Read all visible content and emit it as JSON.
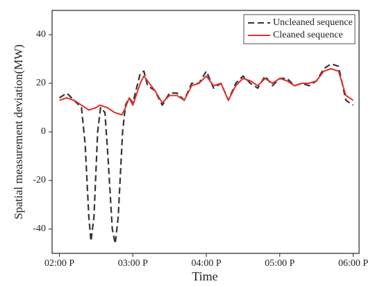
{
  "chart_data": {
    "type": "line",
    "xlabel": "Time",
    "ylabel": "Spatial measurement deviation(MW)",
    "xlim": [
      13.9,
      18.08
    ],
    "xticks": [
      {
        "value": 14,
        "label": "02:00 P"
      },
      {
        "value": 15,
        "label": "03:00 P"
      },
      {
        "value": 16,
        "label": "04:00 P"
      },
      {
        "value": 17,
        "label": "05:00 P"
      },
      {
        "value": 18,
        "label": "06:00 P"
      }
    ],
    "ylim": [
      -50,
      50
    ],
    "yticks": [
      -40,
      -20,
      0,
      20,
      40
    ],
    "legend": "upper right",
    "series": [
      {
        "name": "Uncleaned sequence",
        "color": "#333333",
        "dashed": true,
        "x": [
          14.0,
          14.1,
          14.2,
          14.3,
          14.35,
          14.4,
          14.43,
          14.47,
          14.52,
          14.56,
          14.62,
          14.66,
          14.72,
          14.76,
          14.8,
          14.86,
          14.9,
          14.95,
          15.0,
          15.1,
          15.15,
          15.2,
          15.3,
          15.4,
          15.5,
          15.6,
          15.7,
          15.8,
          15.9,
          16.0,
          16.1,
          16.2,
          16.3,
          16.4,
          16.5,
          16.6,
          16.7,
          16.8,
          16.9,
          17.0,
          17.1,
          17.2,
          17.3,
          17.4,
          17.5,
          17.6,
          17.7,
          17.8,
          17.9,
          18.0
        ],
        "values": [
          14,
          16,
          13,
          10,
          -5,
          -35,
          -45,
          -35,
          0,
          10,
          8,
          -10,
          -40,
          -46,
          -35,
          0,
          11,
          14,
          12,
          24,
          25,
          19,
          17,
          11,
          16,
          16,
          13,
          20,
          20,
          25,
          18,
          20,
          13,
          20,
          23,
          20,
          18,
          23,
          19,
          22,
          22,
          19,
          20,
          19,
          21,
          26,
          28,
          27,
          13,
          11
        ]
      },
      {
        "name": "Cleaned sequence",
        "color": "#e0312f",
        "dashed": false,
        "x": [
          14.0,
          14.1,
          14.2,
          14.3,
          14.4,
          14.5,
          14.55,
          14.65,
          14.75,
          14.85,
          14.9,
          14.95,
          15.0,
          15.1,
          15.15,
          15.2,
          15.3,
          15.4,
          15.5,
          15.6,
          15.7,
          15.8,
          15.9,
          16.0,
          16.1,
          16.2,
          16.3,
          16.4,
          16.5,
          16.6,
          16.7,
          16.8,
          16.9,
          17.0,
          17.1,
          17.2,
          17.3,
          17.4,
          17.5,
          17.6,
          17.7,
          17.8,
          17.9,
          18.0
        ],
        "values": [
          13,
          14,
          13,
          11,
          9,
          10,
          11,
          10,
          8,
          7,
          10,
          14,
          11,
          20,
          23,
          21,
          17,
          12,
          15,
          15,
          13,
          19,
          20,
          23,
          19,
          20,
          13,
          19,
          22,
          21,
          19,
          22,
          20,
          22,
          21,
          19,
          20,
          20,
          21,
          25,
          26,
          25,
          15,
          13
        ]
      }
    ]
  }
}
